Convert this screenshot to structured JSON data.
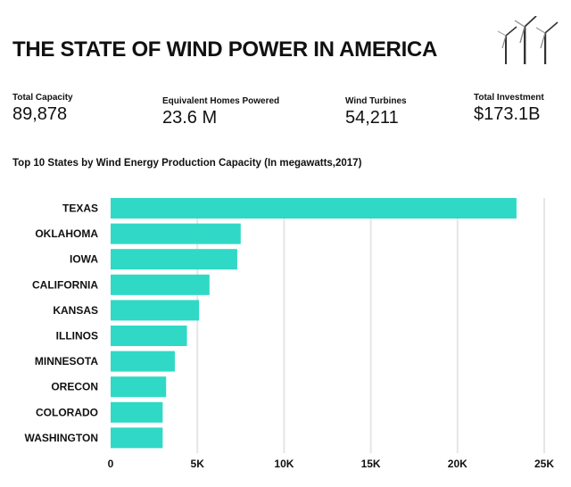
{
  "header": {
    "title": "THE STATE OF WIND POWER IN AMERICA",
    "icon": "wind-turbines-icon"
  },
  "stats": [
    {
      "label": "Total Capacity",
      "value": "89,878"
    },
    {
      "label": "Equivalent Homes Powered",
      "value": "23.6 M"
    },
    {
      "label": "Wind Turbines",
      "value": "54,211"
    },
    {
      "label": "Total Investment",
      "value": "$173.1B"
    }
  ],
  "colors": {
    "bar": "#2fd9c6",
    "grid": "#e6e6e6",
    "text": "#111111"
  },
  "chart_data": {
    "type": "bar",
    "orientation": "horizontal",
    "title": "Top 10 States by Wind Energy Production Capacity (In megawatts,2017)",
    "xlabel": "",
    "ylabel": "",
    "categories": [
      "TEXAS",
      "OKLAHOMA",
      "IOWA",
      "CALIFORNIA",
      "KANSAS",
      "ILLINOS",
      "MINNESOTA",
      "ORECON",
      "COLORADO",
      "WASHINGTON"
    ],
    "values": [
      23400,
      7500,
      7300,
      5700,
      5100,
      4400,
      3700,
      3200,
      3000,
      3000
    ],
    "xlim": [
      0,
      25000
    ],
    "xticks": [
      0,
      5000,
      10000,
      15000,
      20000,
      25000
    ],
    "xtick_labels": [
      "0",
      "5K",
      "10K",
      "15K",
      "20K",
      "25K"
    ],
    "grid": true,
    "legend": "none"
  }
}
